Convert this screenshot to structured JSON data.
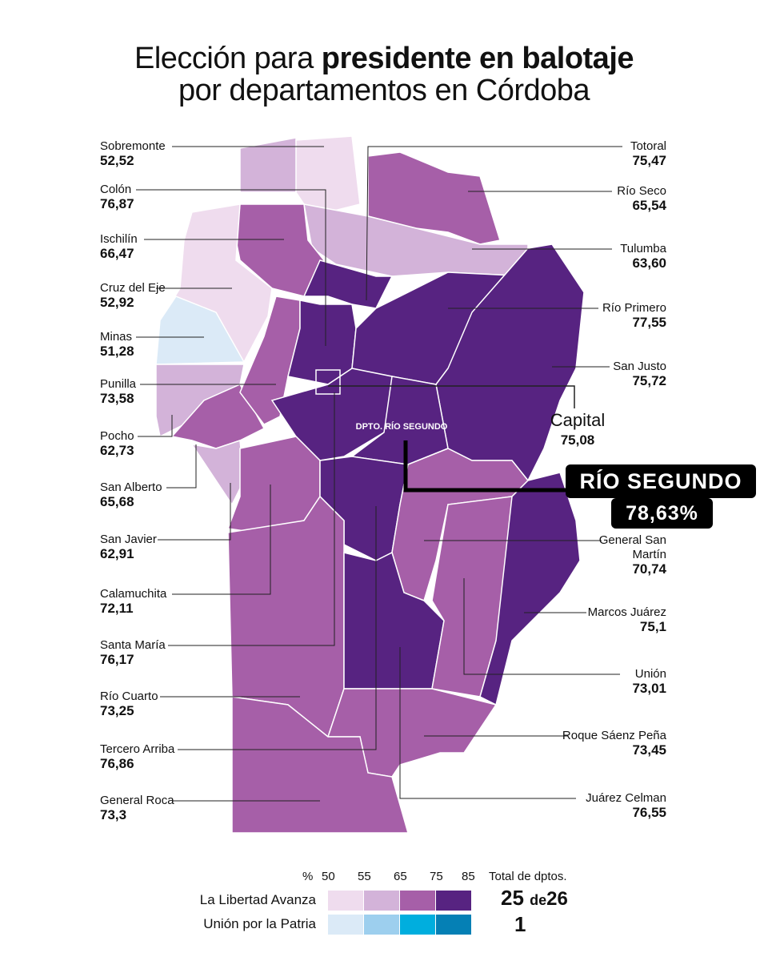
{
  "title": {
    "line1_regular": "Elección para",
    "line1_bold": "presidente en balotaje",
    "line2": "por departamentos en Córdoba"
  },
  "departments": [
    {
      "name": "Sobremonte",
      "value": "52,52"
    },
    {
      "name": "Colón",
      "value": "76,87"
    },
    {
      "name": "Ischilín",
      "value": "66,47"
    },
    {
      "name": "Cruz del Eje",
      "value": "52,92"
    },
    {
      "name": "Minas",
      "value": "51,28"
    },
    {
      "name": "Punilla",
      "value": "73,58"
    },
    {
      "name": "Pocho",
      "value": "62,73"
    },
    {
      "name": "San Alberto",
      "value": "65,68"
    },
    {
      "name": "San Javier",
      "value": "62,91"
    },
    {
      "name": "Calamuchita",
      "value": "72,11"
    },
    {
      "name": "Santa María",
      "value": "76,17"
    },
    {
      "name": "Río Cuarto",
      "value": "73,25"
    },
    {
      "name": "Tercero Arriba",
      "value": "76,86"
    },
    {
      "name": "General Roca",
      "value": "73,3"
    },
    {
      "name": "Totoral",
      "value": "75,47"
    },
    {
      "name": "Río Seco",
      "value": "65,54"
    },
    {
      "name": "Tulumba",
      "value": "63,60"
    },
    {
      "name": "Río Primero",
      "value": "77,55"
    },
    {
      "name": "San Justo",
      "value": "75,72"
    },
    {
      "name": "General San Martín",
      "value": "70,74"
    },
    {
      "name": "Marcos Juárez",
      "value": "75,1"
    },
    {
      "name": "Unión",
      "value": "73,01"
    },
    {
      "name": "Roque Sáenz Peña",
      "value": "73,45"
    },
    {
      "name": "Juárez Celman",
      "value": "76,55"
    }
  ],
  "capital": {
    "name": "Capital",
    "value": "75,08"
  },
  "highlight": {
    "map_label": "DPTO. RÍO SEGUNDO",
    "name": "RÍO SEGUNDO",
    "value": "78,63%"
  },
  "legend": {
    "unit": "%",
    "breaks": [
      "50",
      "55",
      "65",
      "75",
      "85"
    ],
    "total_header": "Total de dptos.",
    "rows": [
      {
        "party": "La Libertad Avanza",
        "count": "25",
        "of": "de",
        "total": "26"
      },
      {
        "party": "Unión por la Patria",
        "count": "1"
      }
    ]
  }
}
